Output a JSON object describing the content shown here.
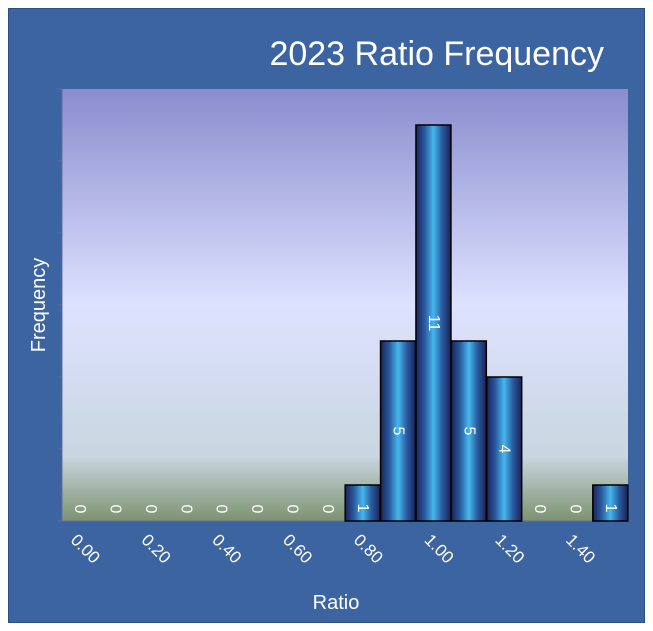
{
  "chart_data": {
    "type": "bar",
    "title": "2023 Ratio Frequency",
    "xlabel": "Ratio",
    "ylabel": "Frequency",
    "categories": [
      "0.00",
      "0.10",
      "0.20",
      "0.30",
      "0.40",
      "0.50",
      "0.60",
      "0.70",
      "0.80",
      "0.90",
      "1.00",
      "1.10",
      "1.20",
      "1.30",
      "1.40",
      "1.50"
    ],
    "tick_labels": [
      "0.00",
      "0.20",
      "0.40",
      "0.60",
      "0.80",
      "1.00",
      "1.20",
      "1.40"
    ],
    "values": [
      0,
      0,
      0,
      0,
      0,
      0,
      0,
      0,
      1,
      5,
      11,
      5,
      4,
      0,
      0,
      1
    ],
    "ylim": [
      0,
      12
    ],
    "grid": false,
    "colors": {
      "frame": "#3b64a0",
      "plot_top": "#8f8fd0",
      "plot_mid": "#dfe3ff",
      "plot_bottom": "#7f9870",
      "bar_dark": "#1e2a5e",
      "bar_light": "#3fb0e8"
    }
  }
}
